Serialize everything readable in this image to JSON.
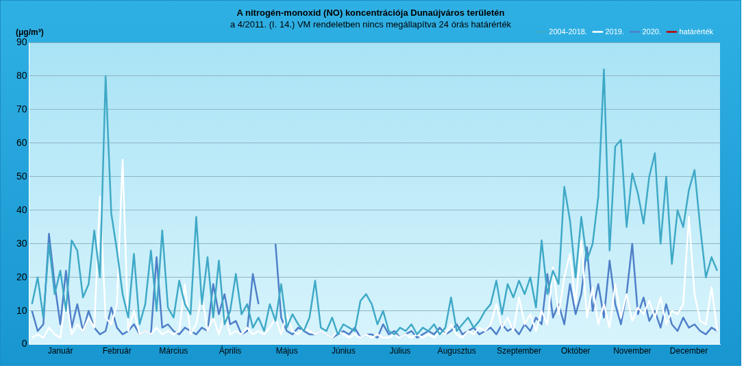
{
  "chart_data": {
    "type": "line",
    "title": "A nitrogén-monoxid (NO) koncentrációja Dunaújváros területén",
    "subtitle": "a 4/2011. (I. 14.) VM rendeletben nincs megállapítva 24 órás határérték",
    "ylabel": "(μg/m³)",
    "categories": [
      null,
      null,
      null,
      null,
      null,
      "Január",
      null,
      null,
      null,
      null,
      null,
      null,
      null,
      null,
      null,
      "Február",
      null,
      null,
      null,
      null,
      null,
      null,
      null,
      null,
      null,
      "Március",
      null,
      null,
      null,
      null,
      null,
      null,
      null,
      null,
      null,
      "Április",
      null,
      null,
      null,
      null,
      null,
      null,
      null,
      null,
      null,
      "Május",
      null,
      null,
      null,
      null,
      null,
      null,
      null,
      null,
      null,
      "Június",
      null,
      null,
      null,
      null,
      null,
      null,
      null,
      null,
      null,
      "Július",
      null,
      null,
      null,
      null,
      null,
      null,
      null,
      null,
      null,
      "Augusztus",
      null,
      null,
      null,
      null,
      null,
      null,
      null,
      null,
      null,
      null,
      "Szeptember",
      null,
      null,
      null,
      null,
      null,
      null,
      null,
      null,
      null,
      "Október",
      null,
      null,
      null,
      null,
      null,
      null,
      null,
      null,
      null,
      "November",
      null,
      null,
      null,
      null,
      null,
      null,
      null,
      null,
      null,
      "December",
      null,
      null,
      null,
      null,
      null
    ],
    "ylim": [
      0,
      90
    ],
    "yticks": [
      0,
      10,
      20,
      30,
      40,
      50,
      60,
      70,
      80,
      90
    ],
    "grid": "y",
    "legend": "top right",
    "marker": "none",
    "line_style": "solid",
    "series": [
      {
        "name": "2004-2018.",
        "color": "#3fa9c6",
        "values": [
          12,
          20,
          8,
          30,
          15,
          22,
          10,
          31,
          28,
          14,
          18,
          34,
          20,
          80,
          39,
          28,
          15,
          8,
          27,
          6,
          12,
          28,
          10,
          34,
          11,
          8,
          19,
          12,
          9,
          38,
          12,
          26,
          8,
          25,
          6,
          10,
          21,
          9,
          12,
          5,
          8,
          4,
          12,
          7,
          18,
          5,
          9,
          6,
          4,
          8,
          19,
          5,
          4,
          8,
          3,
          6,
          5,
          4,
          13,
          15,
          12,
          6,
          10,
          4,
          3,
          5,
          4,
          6,
          3,
          5,
          4,
          6,
          3,
          5,
          14,
          4,
          6,
          8,
          5,
          7,
          10,
          12,
          19,
          9,
          18,
          14,
          19,
          15,
          20,
          11,
          31,
          15,
          22,
          18,
          47,
          37,
          20,
          38,
          25,
          30,
          44,
          82,
          28,
          59,
          61,
          35,
          51,
          45,
          36,
          50,
          57,
          30,
          50,
          24,
          40,
          35,
          46,
          52,
          35,
          20,
          26,
          22
        ]
      },
      {
        "name": "2019.",
        "color": "#ffffff",
        "values": [
          2,
          3,
          2,
          5,
          3,
          2,
          14,
          3,
          6,
          4,
          8,
          5,
          44,
          8,
          6,
          12,
          55,
          4,
          10,
          3,
          4,
          3,
          5,
          3,
          4,
          3,
          4,
          18,
          3,
          6,
          15,
          4,
          8,
          3,
          9,
          3,
          4,
          3,
          5,
          3,
          4,
          3,
          5,
          8,
          3,
          9,
          4,
          3,
          5,
          4,
          3,
          4,
          3,
          2,
          4,
          3,
          2,
          3,
          2,
          3,
          2,
          3,
          2,
          2,
          3,
          2,
          3,
          2,
          3,
          2,
          3,
          2,
          4,
          3,
          6,
          3,
          2,
          4,
          3,
          5,
          4,
          6,
          12,
          5,
          8,
          4,
          14,
          6,
          9,
          4,
          10,
          6,
          23,
          9,
          20,
          27,
          12,
          31,
          8,
          17,
          6,
          12,
          5,
          18,
          8,
          15,
          7,
          11,
          9,
          13,
          8,
          14,
          6,
          10,
          9,
          12,
          38,
          15,
          7,
          6,
          17,
          4
        ]
      },
      {
        "name": "2020.",
        "color": "#4f7fc8",
        "values": [
          10,
          4,
          6,
          33,
          18,
          6,
          22,
          5,
          12,
          4,
          10,
          5,
          3,
          4,
          11,
          5,
          3,
          4,
          6,
          3,
          4,
          3,
          26,
          5,
          6,
          4,
          3,
          5,
          4,
          3,
          5,
          4,
          18,
          9,
          15,
          6,
          7,
          3,
          4,
          21,
          12,
          null,
          null,
          30,
          8,
          4,
          3,
          5,
          4,
          3,
          3,
          4,
          3,
          2,
          3,
          4,
          3,
          5,
          2,
          3,
          3,
          2,
          6,
          3,
          4,
          2,
          3,
          4,
          2,
          3,
          4,
          3,
          5,
          3,
          4,
          6,
          3,
          4,
          5,
          3,
          4,
          5,
          3,
          6,
          4,
          5,
          3,
          6,
          4,
          8,
          6,
          21,
          8,
          12,
          6,
          18,
          9,
          15,
          29,
          10,
          18,
          8,
          25,
          12,
          6,
          15,
          30,
          9,
          14,
          7,
          10,
          5,
          12,
          6,
          4,
          8,
          5,
          6,
          4,
          3,
          5,
          4
        ]
      },
      {
        "name": "határérték",
        "color": "#c00000",
        "values": [
          null,
          null,
          null,
          null,
          null,
          null,
          null,
          null,
          null,
          null,
          null,
          null,
          null,
          null,
          null,
          null,
          null,
          null,
          null,
          null,
          null,
          null,
          null,
          null,
          null,
          null,
          null,
          null,
          null,
          null,
          null,
          null,
          null,
          null,
          null,
          null,
          null,
          null,
          null,
          null,
          null,
          null,
          null,
          null,
          null,
          null,
          null,
          null,
          null,
          null,
          null,
          null,
          null,
          null,
          null,
          null,
          null,
          null,
          null,
          null,
          null,
          null,
          null,
          null,
          null,
          null,
          null,
          null,
          null,
          null,
          null,
          null,
          null,
          null,
          null,
          null,
          null,
          null,
          null,
          null,
          null,
          null,
          null,
          null,
          null,
          null,
          null,
          null,
          null,
          null,
          null,
          null,
          null,
          null,
          null,
          null,
          null,
          null,
          null,
          null,
          null,
          null,
          null,
          null,
          null,
          null,
          null,
          null,
          null,
          null,
          null,
          null,
          null,
          null,
          null,
          null,
          null,
          null,
          null,
          null,
          null,
          null
        ]
      }
    ]
  }
}
